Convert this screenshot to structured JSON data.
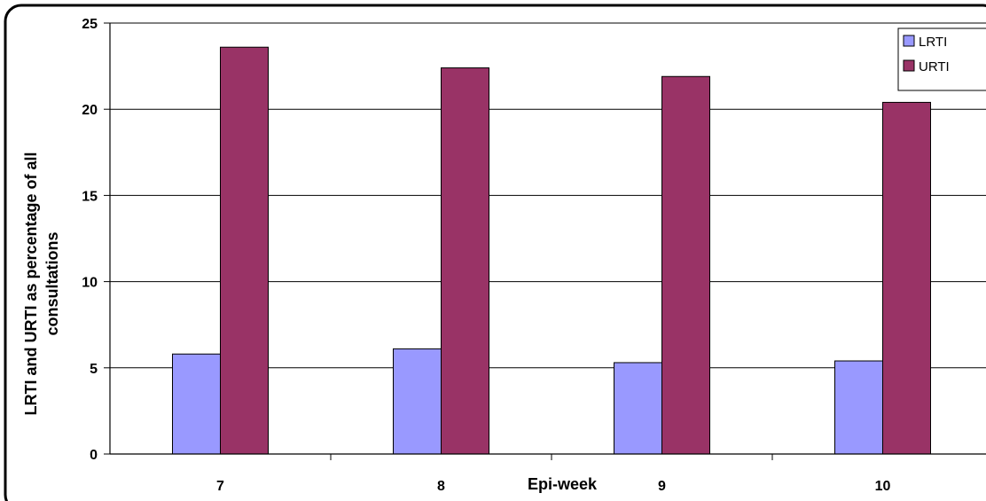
{
  "chart_data": {
    "type": "bar",
    "categories": [
      "7",
      "8",
      "9",
      "10"
    ],
    "series": [
      {
        "name": "LRTI",
        "values": [
          5.8,
          6.1,
          5.3,
          5.4
        ],
        "color": "#9999ff"
      },
      {
        "name": "URTI",
        "values": [
          23.6,
          22.4,
          21.9,
          20.4
        ],
        "color": "#993366"
      }
    ],
    "xlabel": "Epi-week",
    "ylabel_lines": [
      "LRTI and URTI as percentage of all",
      "consultations"
    ],
    "ylim": [
      0,
      25
    ],
    "yticks": [
      0,
      5,
      10,
      15,
      20,
      25
    ],
    "grid": true,
    "legend_position": "top-right"
  }
}
